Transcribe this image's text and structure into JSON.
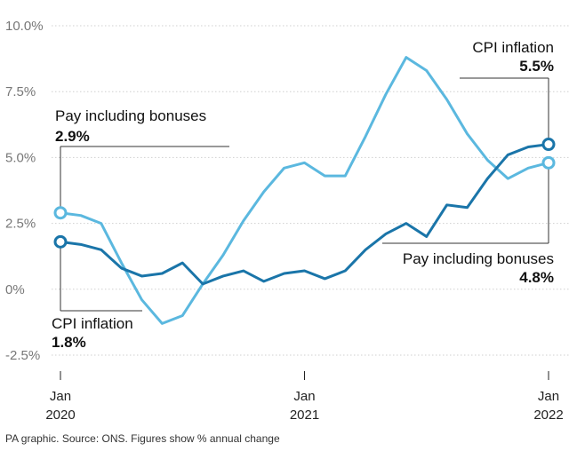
{
  "chart_data": {
    "type": "line",
    "title": "",
    "xlabel": "",
    "ylabel": "",
    "x_unit": "months since Jan 2020",
    "ylim": [
      -2.5,
      10.0
    ],
    "xlim": [
      0,
      24
    ],
    "y_ticks": [
      {
        "value": 10.0,
        "label": "10.0%"
      },
      {
        "value": 7.5,
        "label": "7.5%"
      },
      {
        "value": 5.0,
        "label": "5.0%"
      },
      {
        "value": 2.5,
        "label": "2.5%"
      },
      {
        "value": 0.0,
        "label": "0%"
      },
      {
        "value": -2.5,
        "label": "-2.5%"
      }
    ],
    "x_ticks": [
      {
        "value": 0,
        "line1": "Jan",
        "line2": "2020"
      },
      {
        "value": 12,
        "line1": "Jan",
        "line2": "2021"
      },
      {
        "value": 24,
        "line1": "Jan",
        "line2": "2022"
      }
    ],
    "series": [
      {
        "name": "Pay including bonuses",
        "color": "#5bb8df",
        "x": [
          0,
          1,
          2,
          3,
          4,
          5,
          6,
          7,
          8,
          9,
          10,
          11,
          12,
          13,
          14,
          15,
          16,
          17,
          18,
          19,
          20,
          21,
          22,
          23,
          24
        ],
        "values": [
          2.9,
          2.8,
          2.5,
          1.0,
          -0.4,
          -1.3,
          -1.0,
          0.2,
          1.3,
          2.6,
          3.7,
          4.6,
          4.8,
          4.3,
          4.3,
          5.8,
          7.4,
          8.8,
          8.3,
          7.2,
          5.9,
          4.9,
          4.2,
          4.6,
          4.8
        ]
      },
      {
        "name": "CPI inflation",
        "color": "#1a75a9",
        "x": [
          0,
          1,
          2,
          3,
          4,
          5,
          6,
          7,
          8,
          9,
          10,
          11,
          12,
          13,
          14,
          15,
          16,
          17,
          18,
          19,
          20,
          21,
          22,
          23,
          24
        ],
        "values": [
          1.8,
          1.7,
          1.5,
          0.8,
          0.5,
          0.6,
          1.0,
          0.2,
          0.5,
          0.7,
          0.3,
          0.6,
          0.7,
          0.4,
          0.7,
          1.5,
          2.1,
          2.5,
          2.0,
          3.2,
          3.1,
          4.2,
          5.1,
          5.4,
          5.5
        ]
      }
    ],
    "annotations": [
      {
        "label": "Pay including bonuses",
        "value": "2.9%"
      },
      {
        "label": "CPI inflation",
        "value": "1.8%"
      },
      {
        "label": "CPI inflation",
        "value": "5.5%"
      },
      {
        "label": "Pay including bonuses",
        "value": "4.8%"
      }
    ],
    "source": "PA graphic. Source: ONS. Figures show % annual change"
  }
}
